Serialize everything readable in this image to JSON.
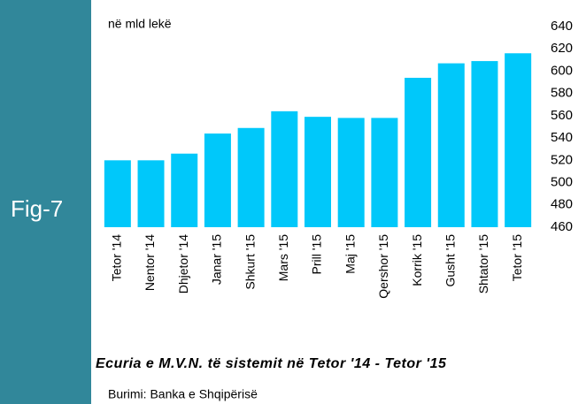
{
  "chart_data": {
    "type": "bar",
    "figure_label": "Fig-7",
    "y_label": "në mld lekë",
    "title": "Ecuria e M.V.N. të sistemit në Tetor '14 - Tetor '15",
    "source": "Burimi: Banka e Shqipërisë",
    "categories": [
      "Tetor '14",
      "Nentor '14",
      "Dhjetor '14",
      "Janar '15",
      "Shkurt '15",
      "Mars '15",
      "Prill '15",
      "Maj '15",
      "Qershor '15",
      "Korrik '15",
      "Gusht '15",
      "Shtator '15",
      "Tetor '15"
    ],
    "values": [
      520,
      520,
      526,
      544,
      549,
      564,
      559,
      558,
      558,
      594,
      607,
      609,
      616
    ],
    "color": "#00c8fa",
    "ylim": [
      460,
      640
    ],
    "yticks": [
      460,
      480,
      500,
      520,
      540,
      560,
      580,
      600,
      620,
      640
    ],
    "grid": false
  }
}
